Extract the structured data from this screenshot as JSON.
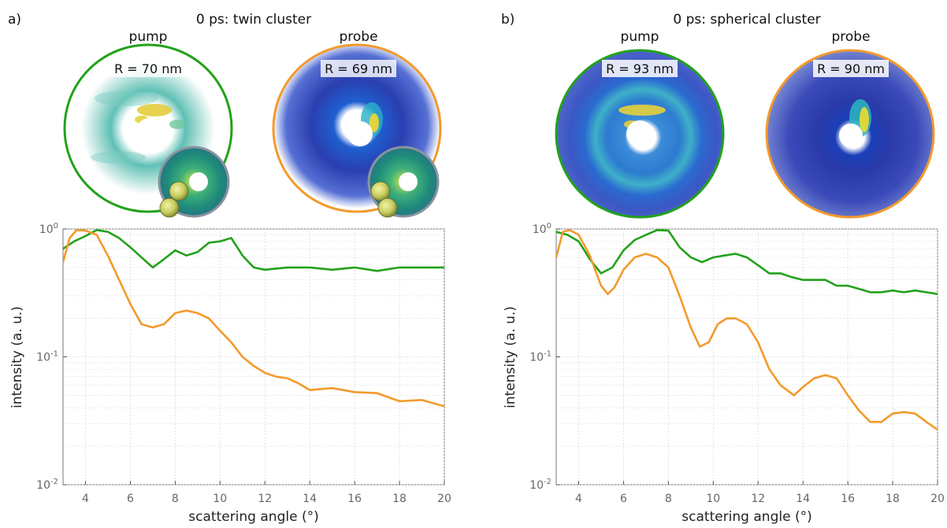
{
  "panels": [
    {
      "label": "a)",
      "title": "0 ps: twin cluster",
      "pump": {
        "label": "pump",
        "radius_text": "R = 70 nm"
      },
      "probe": {
        "label": "probe",
        "radius_text": "R = 69 nm"
      }
    },
    {
      "label": "b)",
      "title": "0 ps: spherical cluster",
      "pump": {
        "label": "pump",
        "radius_text": "R = 93 nm"
      },
      "probe": {
        "label": "probe",
        "radius_text": "R = 90 nm"
      }
    }
  ],
  "colors": {
    "pump": "#22a21a",
    "probe": "#f39a2c",
    "grid": "#dcdcdc",
    "axis": "#555555"
  },
  "chart_data": [
    {
      "type": "line",
      "panel": "a",
      "xlabel": "scattering angle (°)",
      "ylabel": "intensity (a. u.)",
      "xlim": [
        3,
        20
      ],
      "ylim": [
        0.01,
        1
      ],
      "yscale": "log",
      "xticks": [
        4,
        6,
        8,
        10,
        12,
        14,
        16,
        18,
        20
      ],
      "yticks": [
        {
          "value": 1,
          "label": "10^0"
        },
        {
          "value": 0.1,
          "label": "10^-1"
        },
        {
          "value": 0.01,
          "label": "10^-2"
        }
      ],
      "grid": true,
      "series": [
        {
          "role": "pump",
          "x": [
            3,
            3.5,
            4,
            4.5,
            5,
            5.5,
            6,
            6.5,
            7,
            7.5,
            8,
            8.5,
            9,
            9.5,
            10,
            10.5,
            11,
            11.5,
            12,
            13,
            14,
            15,
            16,
            17,
            18,
            19,
            20
          ],
          "y": [
            0.7,
            0.8,
            0.88,
            0.98,
            0.95,
            0.85,
            0.72,
            0.6,
            0.5,
            0.58,
            0.68,
            0.62,
            0.66,
            0.78,
            0.8,
            0.85,
            0.62,
            0.5,
            0.48,
            0.5,
            0.5,
            0.48,
            0.5,
            0.47,
            0.5,
            0.5,
            0.5
          ]
        },
        {
          "role": "probe",
          "x": [
            3,
            3.3,
            3.6,
            4,
            4.5,
            5,
            5.5,
            6,
            6.5,
            7,
            7.5,
            8,
            8.5,
            9,
            9.5,
            10,
            10.5,
            11,
            11.5,
            12,
            12.5,
            13,
            13.5,
            14,
            15,
            16,
            17,
            18,
            19,
            20
          ],
          "y": [
            0.55,
            0.85,
            0.98,
            0.97,
            0.9,
            0.62,
            0.4,
            0.26,
            0.18,
            0.17,
            0.18,
            0.22,
            0.23,
            0.22,
            0.2,
            0.16,
            0.13,
            0.1,
            0.085,
            0.075,
            0.07,
            0.068,
            0.062,
            0.055,
            0.057,
            0.053,
            0.052,
            0.045,
            0.046,
            0.041
          ]
        }
      ]
    },
    {
      "type": "line",
      "panel": "b",
      "xlabel": "scattering angle (°)",
      "ylabel": "intensity (a. u.)",
      "xlim": [
        3,
        20
      ],
      "ylim": [
        0.01,
        1
      ],
      "yscale": "log",
      "xticks": [
        4,
        6,
        8,
        10,
        12,
        14,
        16,
        18,
        20
      ],
      "yticks": [
        {
          "value": 1,
          "label": "10^0"
        },
        {
          "value": 0.1,
          "label": "10^-1"
        },
        {
          "value": 0.01,
          "label": "10^-2"
        }
      ],
      "grid": true,
      "series": [
        {
          "role": "pump",
          "x": [
            3,
            3.5,
            4,
            4.5,
            5,
            5.5,
            6,
            6.5,
            7,
            7.5,
            8,
            8.5,
            9,
            9.5,
            10,
            10.5,
            11,
            11.5,
            12,
            12.5,
            13,
            13.5,
            14,
            14.5,
            15,
            15.5,
            16,
            16.5,
            17,
            17.5,
            18,
            18.5,
            19,
            19.5,
            20
          ],
          "y": [
            0.95,
            0.9,
            0.8,
            0.58,
            0.45,
            0.5,
            0.68,
            0.82,
            0.9,
            0.98,
            0.97,
            0.72,
            0.6,
            0.55,
            0.6,
            0.62,
            0.64,
            0.6,
            0.52,
            0.45,
            0.45,
            0.42,
            0.4,
            0.4,
            0.4,
            0.36,
            0.36,
            0.34,
            0.32,
            0.32,
            0.33,
            0.32,
            0.33,
            0.32,
            0.31
          ]
        },
        {
          "role": "probe",
          "x": [
            3,
            3.3,
            3.6,
            4,
            4.5,
            5,
            5.3,
            5.6,
            6,
            6.5,
            7,
            7.5,
            8,
            8.5,
            9,
            9.4,
            9.8,
            10.2,
            10.6,
            11,
            11.5,
            12,
            12.5,
            13,
            13.6,
            14,
            14.5,
            15,
            15.5,
            16,
            16.5,
            17,
            17.5,
            18,
            18.5,
            19,
            19.5,
            20
          ],
          "y": [
            0.6,
            0.95,
            0.98,
            0.9,
            0.62,
            0.36,
            0.31,
            0.35,
            0.48,
            0.6,
            0.64,
            0.6,
            0.5,
            0.3,
            0.17,
            0.12,
            0.13,
            0.18,
            0.2,
            0.2,
            0.18,
            0.13,
            0.08,
            0.06,
            0.05,
            0.058,
            0.068,
            0.072,
            0.068,
            0.05,
            0.038,
            0.031,
            0.031,
            0.036,
            0.037,
            0.036,
            0.031,
            0.027
          ]
        }
      ]
    }
  ]
}
